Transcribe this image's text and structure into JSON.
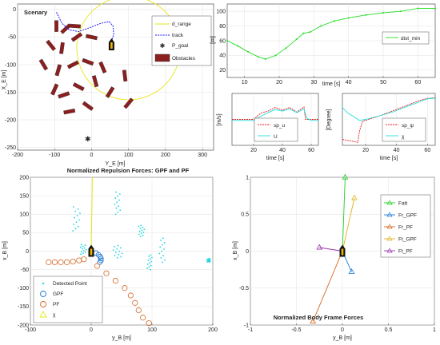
{
  "chart_data": [
    {
      "id": "scenary",
      "type": "scatter",
      "title": "Scenary",
      "xlabel": "Y_E [m]",
      "ylabel": "X_E [m]",
      "xlim": [
        -200,
        330
      ],
      "ylim": [
        -255,
        10
      ],
      "xticks": [
        "-200",
        "-100",
        "0",
        "100",
        "200",
        "300"
      ],
      "yticks": [
        "0",
        "-50",
        "-100",
        "-150",
        "-200",
        "-250"
      ],
      "legend": [
        "d_range",
        "track",
        "P_goal",
        "Obstacles"
      ],
      "legend_position": "top-right",
      "range_circle": {
        "center": [
          100,
          -70
        ],
        "radius": 140
      },
      "goal": [
        -10,
        -235
      ],
      "track": [
        [
          -95,
          -5
        ],
        [
          -80,
          -25
        ],
        [
          -60,
          -37
        ],
        [
          -35,
          -40
        ],
        [
          -5,
          -33
        ],
        [
          25,
          -25
        ],
        [
          48,
          -22
        ],
        [
          58,
          -30
        ],
        [
          60,
          -45
        ],
        [
          54,
          -58
        ]
      ],
      "obstacles": [
        [
          -95,
          -30
        ],
        [
          -70,
          -35
        ],
        [
          -45,
          -30
        ],
        [
          -110,
          -65
        ],
        [
          -80,
          -70
        ],
        [
          -40,
          -50
        ],
        [
          0,
          -50
        ],
        [
          -130,
          -100
        ],
        [
          -90,
          -110
        ],
        [
          -50,
          -100
        ],
        [
          -10,
          -95
        ],
        [
          30,
          -105
        ],
        [
          -100,
          -145
        ],
        [
          -75,
          -155
        ],
        [
          -35,
          -140
        ],
        [
          10,
          -130
        ],
        [
          50,
          -150
        ],
        [
          -60,
          -185
        ],
        [
          -10,
          -175
        ],
        [
          90,
          -120
        ],
        [
          100,
          -170
        ]
      ]
    },
    {
      "id": "dist",
      "type": "line",
      "xlabel": "time [s]",
      "ylabel": "[m]",
      "xlim": [
        5,
        65
      ],
      "ylim": [
        10,
        110
      ],
      "xticks": [
        "10",
        "20",
        "30",
        "40",
        "50",
        "60"
      ],
      "yticks": [
        "20",
        "40",
        "60",
        "80",
        "100"
      ],
      "legend_position": "right",
      "series": [
        {
          "name": "dist_min",
          "x": [
            5,
            8,
            11,
            14,
            16,
            19,
            22,
            25,
            27,
            29,
            32,
            36,
            40,
            45,
            50,
            55,
            60,
            65
          ],
          "y": [
            60,
            53,
            45,
            38,
            35,
            40,
            50,
            62,
            70,
            72,
            80,
            87,
            91,
            95,
            98,
            100,
            104,
            104
          ]
        }
      ]
    },
    {
      "id": "speed",
      "type": "line",
      "xlabel": "time [s]",
      "ylabel": "[m/s]",
      "xlim": [
        5,
        65
      ],
      "ylim": [
        0,
        10
      ],
      "xticks": [
        "20",
        "40",
        "60"
      ],
      "yticks": [],
      "legend_position": "bottom-center",
      "series": [
        {
          "name": "sp_u",
          "x": [
            5,
            15,
            20,
            25,
            30,
            35,
            40,
            45,
            50,
            55,
            56,
            60,
            65
          ],
          "y": [
            5,
            5,
            5,
            6.2,
            6.6,
            7.3,
            6.8,
            7.3,
            6.4,
            7.4,
            5.0,
            5.0,
            5.0
          ]
        },
        {
          "name": "U",
          "x": [
            5,
            15,
            20,
            25,
            30,
            35,
            40,
            45,
            50,
            55,
            57,
            60,
            65
          ],
          "y": [
            4.8,
            4.8,
            4.8,
            5.6,
            6.3,
            6.9,
            6.6,
            7.0,
            6.3,
            7.0,
            5.2,
            4.8,
            4.8
          ]
        }
      ]
    },
    {
      "id": "heading",
      "type": "line",
      "xlabel": "time [s]",
      "ylabel": "[Degree]",
      "xlim": [
        5,
        65
      ],
      "ylim": [
        -50,
        210
      ],
      "xticks": [
        "20",
        "40",
        "60"
      ],
      "yticks": [],
      "legend_position": "bottom-center",
      "series": [
        {
          "name": "sp_ψ",
          "x": [
            5,
            8,
            12,
            15,
            16,
            18,
            22,
            28,
            35,
            45,
            55,
            60,
            65
          ],
          "y": [
            -20,
            -25,
            -30,
            -35,
            20,
            70,
            80,
            95,
            115,
            145,
            175,
            185,
            188
          ]
        },
        {
          "name": "χ",
          "x": [
            5,
            8,
            12,
            16,
            20,
            24,
            30,
            38,
            45,
            55,
            60,
            65
          ],
          "y": [
            140,
            115,
            95,
            75,
            80,
            88,
            100,
            118,
            140,
            168,
            183,
            186
          ]
        }
      ]
    },
    {
      "id": "repulsion",
      "type": "scatter",
      "title": "Normalized Repulsion Forces: GPF and PF",
      "xlabel": "y_B [m]",
      "ylabel": "x_B [m]",
      "xlim": [
        -100,
        200
      ],
      "ylim": [
        -200,
        200
      ],
      "xticks": [
        "-100",
        "0",
        "100",
        "200"
      ],
      "yticks": [
        "200",
        "150",
        "100",
        "50",
        "0",
        "-50",
        "-100",
        "-150",
        "-200"
      ],
      "legend": [
        "Detected Point",
        "GPF",
        "PF",
        "χ"
      ],
      "legend_position": "bottom-left",
      "detected_clusters": [
        {
          "x_range": [
            -30,
            -18
          ],
          "y_range": [
            55,
            120
          ]
        },
        {
          "x_range": [
            -18,
            -8
          ],
          "y_range": [
            -8,
            18
          ]
        },
        {
          "x_range": [
            38,
            48
          ],
          "y_range": [
            100,
            160
          ]
        },
        {
          "x_range": [
            78,
            88
          ],
          "y_range": [
            40,
            70
          ]
        },
        {
          "x_range": [
            36,
            52
          ],
          "y_range": [
            -18,
            15
          ]
        },
        {
          "x_range": [
            112,
            122
          ],
          "y_range": [
            -30,
            35
          ]
        },
        {
          "x_range": [
            92,
            100
          ],
          "y_range": [
            -50,
            -10
          ]
        },
        {
          "x_range": [
            190,
            196
          ],
          "y_range": [
            -30,
            -20
          ]
        }
      ],
      "gpf": [
        [
          8,
          -5
        ],
        [
          12,
          -10
        ],
        [
          15,
          -15
        ],
        [
          16,
          -20
        ],
        [
          16,
          -25
        ],
        [
          14,
          -30
        ]
      ],
      "pf": [
        [
          -70,
          -30
        ],
        [
          -60,
          -30
        ],
        [
          -50,
          -30
        ],
        [
          -40,
          -30
        ],
        [
          -30,
          -28
        ],
        [
          -20,
          -25
        ],
        [
          -12,
          -22
        ],
        [
          10,
          -40
        ],
        [
          25,
          -60
        ],
        [
          40,
          -80
        ],
        [
          55,
          -100
        ],
        [
          65,
          -120
        ],
        [
          72,
          -140
        ],
        [
          78,
          -160
        ],
        [
          85,
          -180
        ],
        [
          95,
          -195
        ]
      ],
      "chi": [
        [
          0,
          0
        ],
        [
          2,
          200
        ]
      ]
    },
    {
      "id": "body-forces",
      "type": "line",
      "title": "Normalized Body Frame Forces",
      "xlabel": "y_B [m]",
      "ylabel": "x_B [m]",
      "xlim": [
        -1,
        1
      ],
      "ylim": [
        -1,
        1
      ],
      "xticks": [
        "-1",
        "-0.5",
        "0",
        "0.5",
        "1"
      ],
      "yticks": [
        "1",
        "0.5",
        "0",
        "-0.5",
        "-1"
      ],
      "legend": [
        "Fatt",
        "Fr_GPF",
        "Fr_PF",
        "Ft_GPF",
        "Ft_PF"
      ],
      "legend_position": "top-right",
      "series": [
        {
          "name": "Fatt",
          "color": "#22cc22",
          "tip": [
            0.03,
            1.0
          ]
        },
        {
          "name": "Fr_GPF",
          "color": "#1f77d4",
          "tip": [
            0.1,
            -0.28
          ]
        },
        {
          "name": "Fr_PF",
          "color": "#d6661f",
          "tip": [
            -0.32,
            -0.95
          ]
        },
        {
          "name": "Ft_GPF",
          "color": "#e0b020",
          "tip": [
            0.13,
            0.72
          ]
        },
        {
          "name": "Ft_PF",
          "color": "#9933aa",
          "tip": [
            -0.25,
            0.05
          ]
        }
      ]
    }
  ]
}
